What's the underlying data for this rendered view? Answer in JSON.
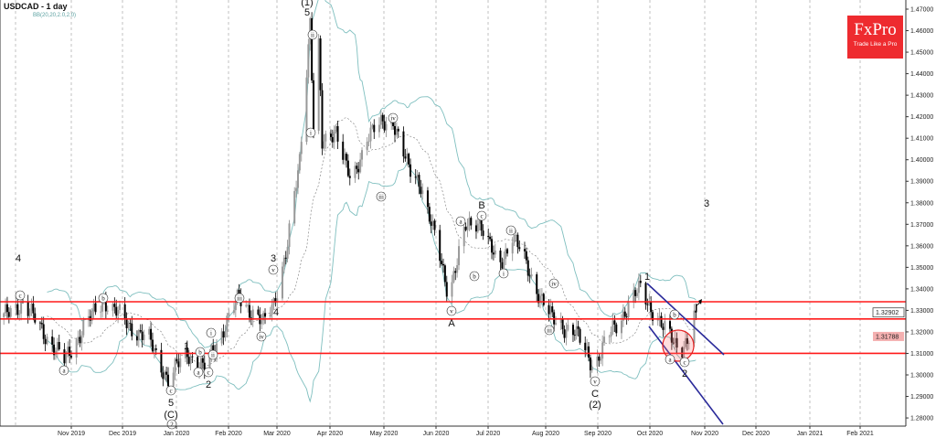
{
  "header": {
    "title": "USDCAD - 1 day",
    "indicator": "BB(20,20,2.0,2.0)"
  },
  "logo": {
    "brand": "FxPro",
    "tagline": "Trade Like a Pro",
    "color": "#ee2b2f"
  },
  "chart_data": {
    "type": "candlestick",
    "symbol": "USDCAD",
    "timeframe": "1 day",
    "ylim": [
      1.275,
      1.475
    ],
    "y_ticks": [
      "1.47000",
      "1.46000",
      "1.45000",
      "1.44000",
      "1.43000",
      "1.42000",
      "1.41000",
      "1.40000",
      "1.39000",
      "1.38000",
      "1.37000",
      "1.36000",
      "1.35000",
      "1.34000",
      "1.33000",
      "1.32000",
      "1.31000",
      "1.30000",
      "1.29000",
      "1.28000"
    ],
    "x_ticks": [
      "Nov 2019",
      "Dec 2019",
      "Jan 2020",
      "Feb 2020",
      "Mar 2020",
      "Apr 2020",
      "May 2020",
      "Jun 2020",
      "Jul 2020",
      "Aug 2020",
      "Sep 2020",
      "Oct 2020",
      "Nov 2020",
      "Dec 2020",
      "Jan 2021",
      "Feb 2021"
    ],
    "close_path": [
      [
        "2019-09-23",
        1.3268
      ],
      [
        "2019-10-04",
        1.334
      ],
      [
        "2019-10-14",
        1.322
      ],
      [
        "2019-10-28",
        1.3064
      ],
      [
        "2019-11-08",
        1.322
      ],
      [
        "2019-11-20",
        1.3349
      ],
      [
        "2019-12-04",
        1.3234
      ],
      [
        "2019-12-16",
        1.316
      ],
      [
        "2019-12-27",
        1.2979
      ],
      [
        "2020-01-07",
        1.3106
      ],
      [
        "2020-01-17",
        1.3021
      ],
      [
        "2020-01-24",
        1.315
      ],
      [
        "2020-02-06",
        1.3361
      ],
      [
        "2020-02-20",
        1.3234
      ],
      [
        "2020-02-26",
        1.334
      ],
      [
        "2020-03-05",
        1.3595
      ],
      [
        "2020-03-12",
        1.4
      ],
      [
        "2020-03-18",
        1.4649
      ],
      [
        "2020-03-20",
        1.4148
      ],
      [
        "2020-03-23",
        1.452
      ],
      [
        "2020-03-25",
        1.4062
      ],
      [
        "2020-04-02",
        1.415
      ],
      [
        "2020-04-11",
        1.3871
      ],
      [
        "2020-04-20",
        1.412
      ],
      [
        "2020-05-05",
        1.419
      ],
      [
        "2020-05-14",
        1.395
      ],
      [
        "2020-05-21",
        1.3893
      ],
      [
        "2020-06-06",
        1.3383
      ],
      [
        "2020-06-16",
        1.368
      ],
      [
        "2020-06-24",
        1.3723
      ],
      [
        "2020-07-05",
        1.3489
      ],
      [
        "2020-07-13",
        1.3659
      ],
      [
        "2020-07-23",
        1.3468
      ],
      [
        "2020-08-05",
        1.3255
      ],
      [
        "2020-08-18",
        1.32
      ],
      [
        "2020-08-29",
        1.3043
      ],
      [
        "2020-09-09",
        1.3213
      ],
      [
        "2020-09-25",
        1.3404
      ],
      [
        "2020-10-08",
        1.3213
      ],
      [
        "2020-10-18",
        1.3128
      ],
      [
        "2020-10-23",
        1.316
      ],
      [
        "2020-10-27",
        1.329
      ]
    ],
    "bollinger": {
      "period": 20,
      "deviation": 2.0
    },
    "horizontal_levels": [
      1.334,
      1.326,
      1.31
    ],
    "current_price": "1.32902",
    "marked_price": "1.31788",
    "colors": {
      "levels": "#ff1a1a",
      "channel": "#2a2a9a",
      "bands": "#7fbfbf",
      "bull": "#999999",
      "bear": "#000000"
    },
    "grid": "vertical dashed"
  },
  "wave_labels": [
    {
      "text": "4",
      "circled": false
    },
    {
      "text": "c",
      "circled": true
    },
    {
      "text": "a",
      "circled": true
    },
    {
      "text": "b",
      "circled": true
    },
    {
      "text": "c",
      "circled": true
    },
    {
      "text": "5",
      "circled": false
    },
    {
      "text": "(C)",
      "circled": false
    },
    {
      "text": "2",
      "circled": true
    },
    {
      "text": "1",
      "circled": false
    },
    {
      "text": "b",
      "circled": true
    },
    {
      "text": "a",
      "circled": true
    },
    {
      "text": "c",
      "circled": true
    },
    {
      "text": "2",
      "circled": false
    },
    {
      "text": "i",
      "circled": true
    },
    {
      "text": "ii",
      "circled": true
    },
    {
      "text": "iii",
      "circled": true
    },
    {
      "text": "iv",
      "circled": true
    },
    {
      "text": "4",
      "circled": false
    },
    {
      "text": "v",
      "circled": true
    },
    {
      "text": "3",
      "circled": false
    },
    {
      "text": "5",
      "circled": false
    },
    {
      "text": "(1)",
      "circled": false
    },
    {
      "text": "ii",
      "circled": true
    },
    {
      "text": "i",
      "circled": true
    },
    {
      "text": "iii",
      "circled": true
    },
    {
      "text": "iv",
      "circled": true
    },
    {
      "text": "v",
      "circled": true
    },
    {
      "text": "A",
      "circled": false
    },
    {
      "text": "a",
      "circled": true
    },
    {
      "text": "b",
      "circled": true
    },
    {
      "text": "c",
      "circled": true
    },
    {
      "text": "B",
      "circled": false
    },
    {
      "text": "ii",
      "circled": true
    },
    {
      "text": "i",
      "circled": true
    },
    {
      "text": "iv",
      "circled": true
    },
    {
      "text": "iii",
      "circled": true
    },
    {
      "text": "v",
      "circled": true
    },
    {
      "text": "C",
      "circled": false
    },
    {
      "text": "(2)",
      "circled": false
    },
    {
      "text": "1",
      "circled": false
    },
    {
      "text": "b",
      "circled": true
    },
    {
      "text": "a",
      "circled": true
    },
    {
      "text": "c",
      "circled": true
    },
    {
      "text": "2",
      "circled": false
    },
    {
      "text": "3",
      "circled": false
    }
  ]
}
